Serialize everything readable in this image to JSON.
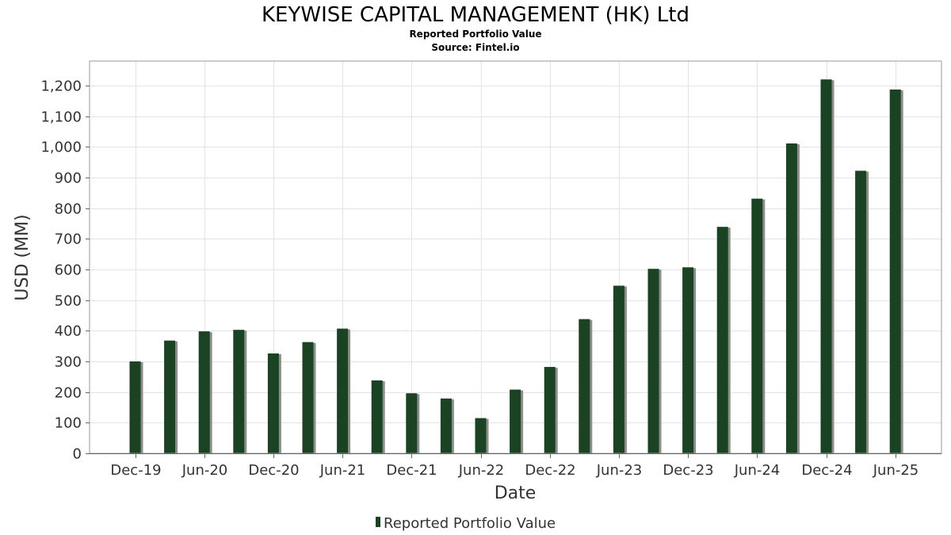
{
  "chart_data": {
    "type": "bar",
    "title": "KEYWISE CAPITAL MANAGEMENT (HK) Ltd",
    "subtitle": "Reported Portfolio Value",
    "source": "Source: Fintel.io",
    "xlabel": "Date",
    "ylabel": "USD (MM)",
    "ylim": [
      0,
      1280
    ],
    "yticks": [
      0,
      100,
      200,
      300,
      400,
      500,
      600,
      700,
      800,
      900,
      1000,
      1100,
      1200
    ],
    "ytick_labels": [
      "0",
      "100",
      "200",
      "300",
      "400",
      "500",
      "600",
      "700",
      "800",
      "900",
      "1,000",
      "1,100",
      "1,200"
    ],
    "xtick_labels": [
      "Dec-19",
      "Jun-20",
      "Dec-20",
      "Jun-21",
      "Dec-21",
      "Jun-22",
      "Dec-22",
      "Jun-23",
      "Dec-23",
      "Jun-24",
      "Dec-24",
      "Jun-25"
    ],
    "categories": [
      "Dec-19",
      "Mar-20",
      "Jun-20",
      "Sep-20",
      "Dec-20",
      "Mar-21",
      "Jun-21",
      "Sep-21",
      "Dec-21",
      "Mar-22",
      "Jun-22",
      "Sep-22",
      "Dec-22",
      "Mar-23",
      "Jun-23",
      "Sep-23",
      "Dec-23",
      "Mar-24",
      "Jun-24",
      "Sep-24",
      "Dec-24",
      "Mar-25",
      "Jun-25"
    ],
    "series": [
      {
        "name": "Reported Portfolio Value",
        "color": "#1a4223",
        "values": [
          300,
          368,
          398,
          403,
          326,
          363,
          407,
          238,
          196,
          179,
          115,
          208,
          282,
          438,
          547,
          602,
          607,
          739,
          831,
          1011,
          1220,
          922,
          1187
        ]
      }
    ],
    "grid": true,
    "legend": "bottom-center"
  }
}
